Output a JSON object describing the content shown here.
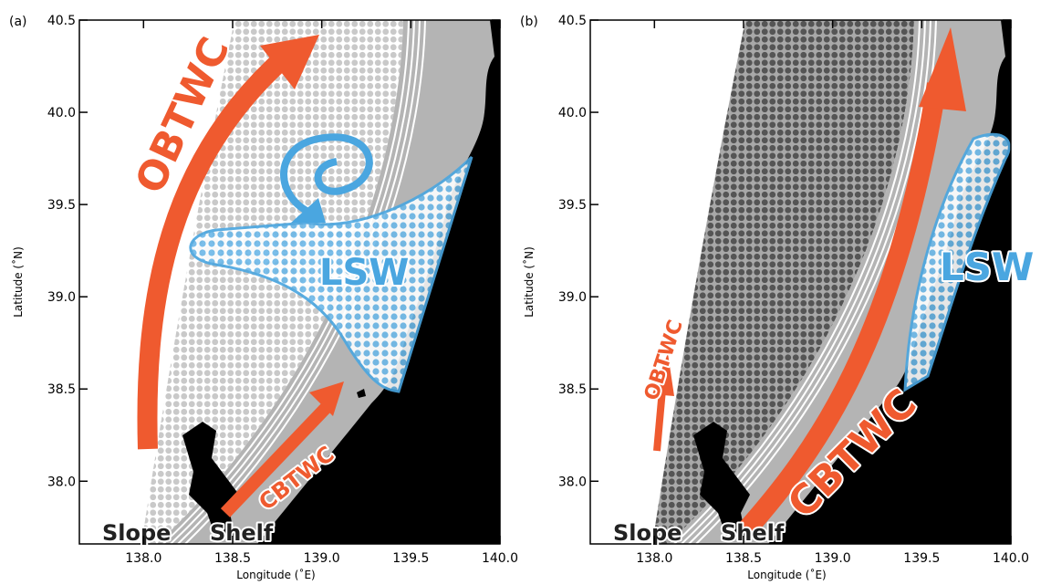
{
  "panels": [
    {
      "label": "(a)",
      "xlabel": "Longitude (˚E)",
      "ylabel": "Latitude (˚N)",
      "xlim": [
        137.64,
        140.0
      ],
      "ylim": [
        37.66,
        40.5
      ],
      "xticks": [
        {
          "value": 138,
          "label": "138.0"
        },
        138.5,
        {
          "value": 139,
          "label": "139.0"
        },
        139.5,
        {
          "value": 140,
          "label": "140.0"
        }
      ],
      "yticks": [
        {
          "value": 38,
          "label": "38.0"
        },
        38.5,
        {
          "value": 39,
          "label": "39.0"
        },
        39.5,
        {
          "value": 40,
          "label": "40.0"
        },
        40.5
      ],
      "annotations": {
        "obtwc": "OBTWC",
        "cbtwc": "CBTWC",
        "lsw": "LSW",
        "slope": "Slope",
        "shelf": "Shelf"
      }
    },
    {
      "label": "(b)",
      "xlabel": "Longitude (˚E)",
      "ylabel": "Latitude (˚N)",
      "xlim": [
        137.64,
        140.0
      ],
      "ylim": [
        37.66,
        40.5
      ],
      "xticks": [
        {
          "value": 138,
          "label": "138.0"
        },
        138.5,
        {
          "value": 139,
          "label": "139.0"
        },
        139.5,
        {
          "value": 140,
          "label": "140.0"
        }
      ],
      "yticks": [
        {
          "value": 38,
          "label": "38.0"
        },
        38.5,
        {
          "value": 39,
          "label": "39.0"
        },
        39.5,
        {
          "value": 40,
          "label": "40.0"
        },
        40.5
      ],
      "annotations": {
        "obtwc": "OBTWC",
        "cbtwc": "CBTWC",
        "lsw": "LSW",
        "slope": "Slope",
        "shelf": "Shelf"
      }
    }
  ]
}
